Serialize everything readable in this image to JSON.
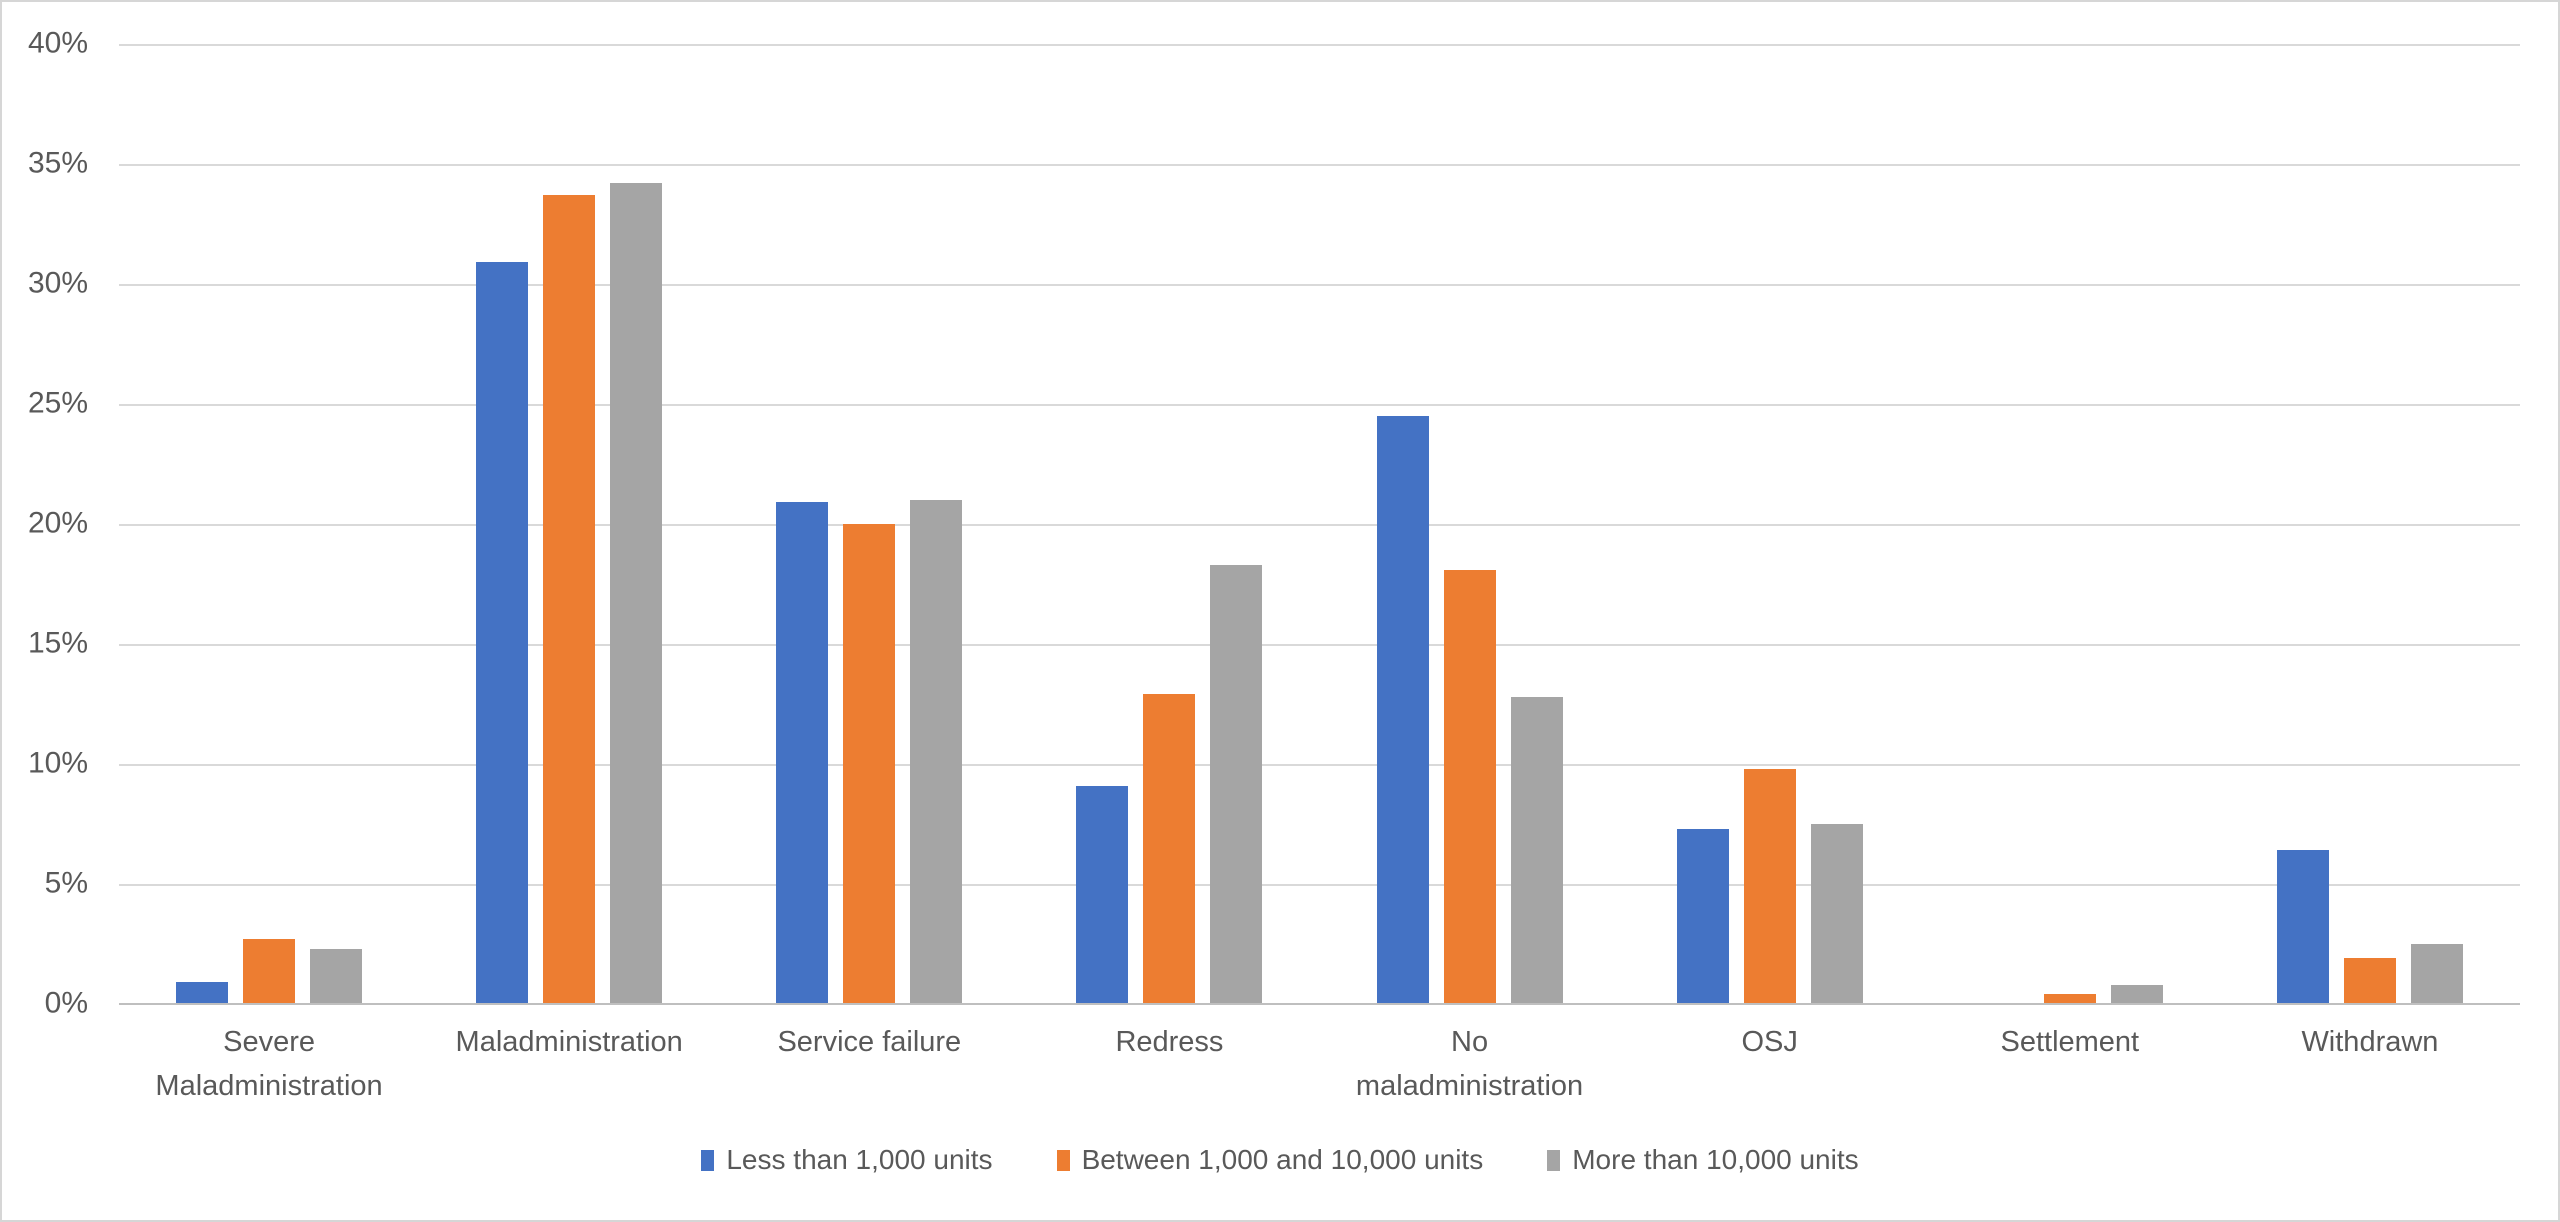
{
  "chart_data": {
    "type": "bar",
    "title": "",
    "xlabel": "",
    "ylabel": "",
    "ylim": [
      0,
      40
    ],
    "grid": true,
    "legend_position": "bottom",
    "ylabel_ticks": [
      "40%",
      "35%",
      "30%",
      "25%",
      "20%",
      "15%",
      "10%",
      "5%",
      "0%"
    ],
    "categories": [
      "Severe Maladministration",
      "Maladministration",
      "Service failure",
      "Redress",
      "No maladministration",
      "OSJ",
      "Settlement",
      "Withdrawn"
    ],
    "series": [
      {
        "name": "Less than 1,000 units",
        "color": "#4472C4",
        "values": [
          0.9,
          30.9,
          20.9,
          9.1,
          24.5,
          7.3,
          0,
          6.4
        ]
      },
      {
        "name": "Between 1,000 and 10,000 units",
        "color": "#ED7D31",
        "values": [
          2.7,
          33.7,
          20.0,
          12.9,
          18.1,
          9.8,
          0.4,
          1.9
        ]
      },
      {
        "name": "More than 10,000 units",
        "color": "#A5A5A5",
        "values": [
          2.3,
          34.2,
          21.0,
          18.3,
          12.8,
          7.5,
          0.8,
          2.5
        ]
      }
    ],
    "colors": {
      "gridline": "#D9D9D9",
      "axis_line": "#BFBFBF",
      "axis_text": "#595959"
    }
  }
}
